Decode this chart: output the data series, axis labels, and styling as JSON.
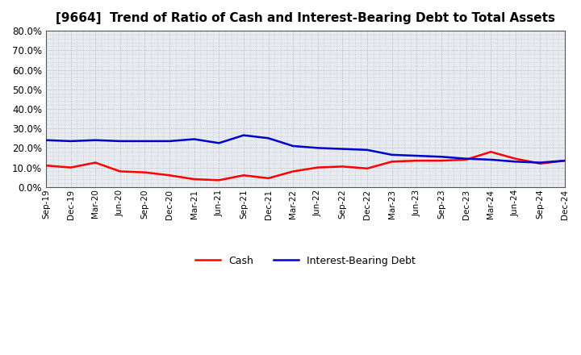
{
  "title": "[9664]  Trend of Ratio of Cash and Interest-Bearing Debt to Total Assets",
  "x_labels": [
    "Sep-19",
    "Dec-19",
    "Mar-20",
    "Jun-20",
    "Sep-20",
    "Dec-20",
    "Mar-21",
    "Jun-21",
    "Sep-21",
    "Dec-21",
    "Mar-22",
    "Jun-22",
    "Sep-22",
    "Dec-22",
    "Mar-23",
    "Jun-23",
    "Sep-23",
    "Dec-23",
    "Mar-24",
    "Jun-24",
    "Sep-24",
    "Dec-24"
  ],
  "cash": [
    0.11,
    0.1,
    0.125,
    0.08,
    0.075,
    0.06,
    0.04,
    0.035,
    0.06,
    0.045,
    0.08,
    0.1,
    0.105,
    0.095,
    0.13,
    0.135,
    0.135,
    0.14,
    0.18,
    0.145,
    0.12,
    0.135
  ],
  "interest_bearing_debt": [
    0.24,
    0.235,
    0.24,
    0.235,
    0.235,
    0.235,
    0.245,
    0.225,
    0.265,
    0.25,
    0.21,
    0.2,
    0.195,
    0.19,
    0.165,
    0.16,
    0.155,
    0.145,
    0.14,
    0.13,
    0.125,
    0.135
  ],
  "cash_color": "#FF0000",
  "debt_color": "#0000CD",
  "background_color": "#FFFFFF",
  "plot_bg_color": "#E8EBF0",
  "grid_color": "#888888",
  "ylim": [
    0.0,
    0.8
  ],
  "yticks": [
    0.0,
    0.1,
    0.2,
    0.3,
    0.4,
    0.5,
    0.6,
    0.7,
    0.8
  ],
  "legend_cash": "Cash",
  "legend_debt": "Interest-Bearing Debt",
  "line_width": 1.8,
  "title_fontsize": 11
}
